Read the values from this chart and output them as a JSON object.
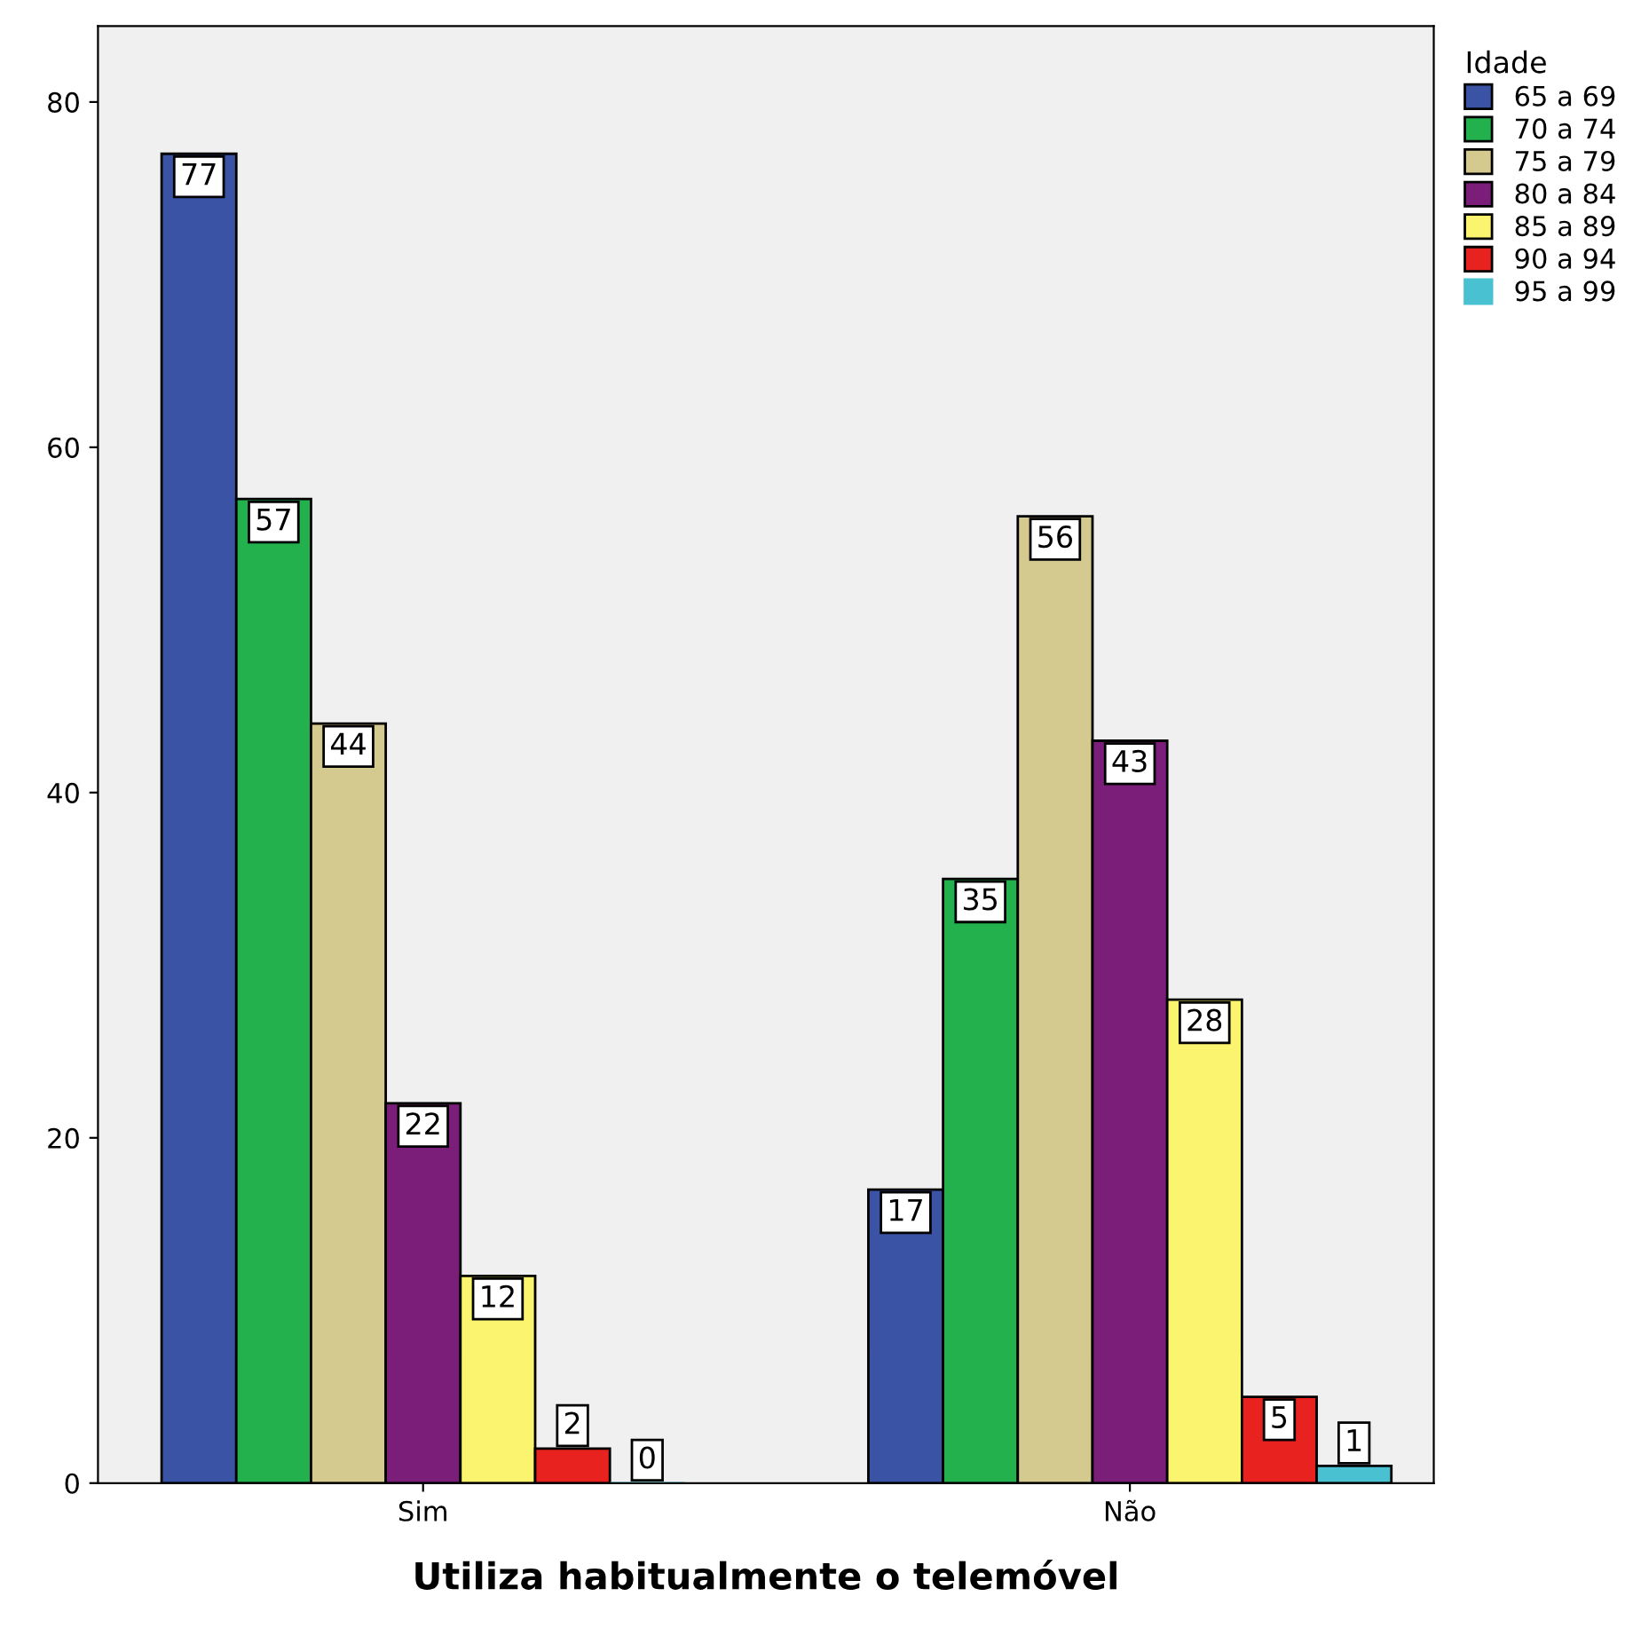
{
  "chart_data": {
    "type": "bar",
    "xlabel": "Utiliza habitualmente o telemóvel",
    "legend_title": "Idade",
    "categories": [
      "Sim",
      "Não"
    ],
    "series": [
      {
        "name": "65 a 69",
        "color": "#3a53a4",
        "values": [
          77,
          17
        ]
      },
      {
        "name": "70 a 74",
        "color": "#22b14c",
        "values": [
          57,
          35
        ]
      },
      {
        "name": "75 a 79",
        "color": "#d4c98f",
        "values": [
          44,
          56
        ]
      },
      {
        "name": "80 a 84",
        "color": "#7b1e7a",
        "values": [
          22,
          43
        ]
      },
      {
        "name": "85 a 89",
        "color": "#fbf46e",
        "values": [
          12,
          28
        ]
      },
      {
        "name": "90 a 94",
        "color": "#e8221e",
        "values": [
          2,
          5
        ]
      },
      {
        "name": "95 a 99",
        "color": "#49c1d0",
        "values": [
          0,
          1
        ]
      }
    ],
    "ylim": [
      0,
      84.4
    ],
    "yticks": [
      0,
      20,
      40,
      60,
      80
    ],
    "grid": false,
    "legend": "top right",
    "data_labels": true
  }
}
